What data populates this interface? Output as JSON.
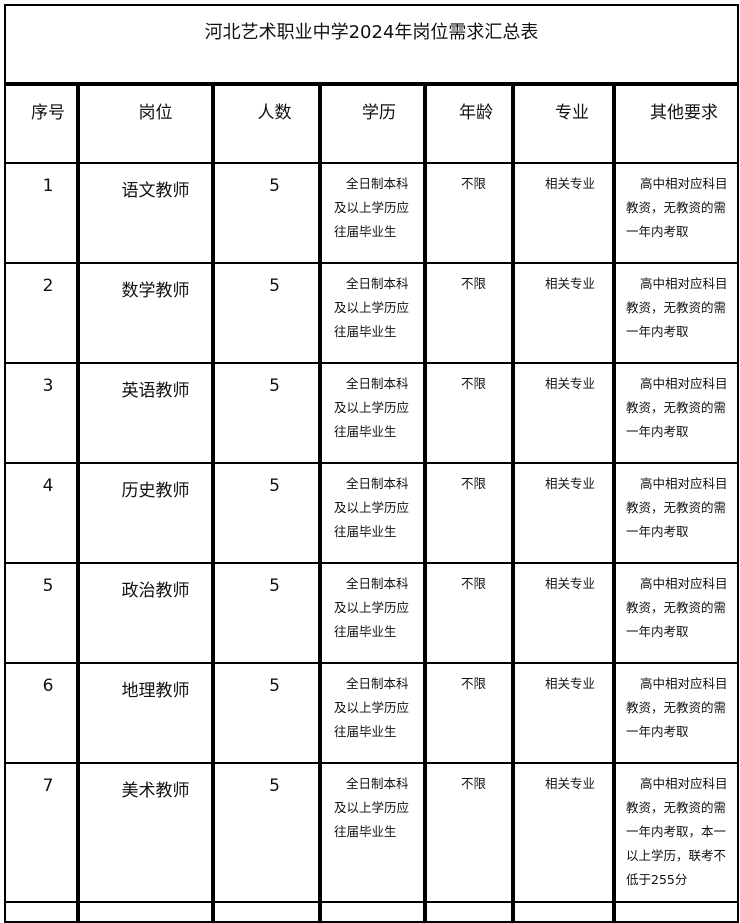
{
  "title": "河北艺术职业中学2024年岗位需求汇总表",
  "headers": [
    "序号",
    "岗位",
    "人数",
    "学历",
    "年龄",
    "专业",
    "其他要求"
  ],
  "rows": [
    {
      "seq": "1",
      "position": "语文教师",
      "count": "5",
      "education": "全日制本科及以上学历应往届毕业生",
      "age": "不限",
      "major": "相关专业",
      "other": "高中相对应科目教资，无教资的需一年内考取"
    },
    {
      "seq": "2",
      "position": "数学教师",
      "count": "5",
      "education": "全日制本科及以上学历应往届毕业生",
      "age": "不限",
      "major": "相关专业",
      "other": "高中相对应科目教资，无教资的需一年内考取"
    },
    {
      "seq": "3",
      "position": "英语教师",
      "count": "5",
      "education": "全日制本科及以上学历应往届毕业生",
      "age": "不限",
      "major": "相关专业",
      "other": "高中相对应科目教资，无教资的需一年内考取"
    },
    {
      "seq": "4",
      "position": "历史教师",
      "count": "5",
      "education": "全日制本科及以上学历应往届毕业生",
      "age": "不限",
      "major": "相关专业",
      "other": "高中相对应科目教资，无教资的需一年内考取"
    },
    {
      "seq": "5",
      "position": "政治教师",
      "count": "5",
      "education": "全日制本科及以上学历应往届毕业生",
      "age": "不限",
      "major": "相关专业",
      "other": "高中相对应科目教资，无教资的需一年内考取"
    },
    {
      "seq": "6",
      "position": "地理教师",
      "count": "5",
      "education": "全日制本科及以上学历应往届毕业生",
      "age": "不限",
      "major": "相关专业",
      "other": "高中相对应科目教资，无教资的需一年内考取"
    },
    {
      "seq": "7",
      "position": "美术教师",
      "count": "5",
      "education": "全日制本科及以上学历应往届毕业生",
      "age": "不限",
      "major": "相关专业",
      "other": "高中相对应科目教资，无教资的需一年内考取，本一以上学历，联考不低于255分"
    }
  ]
}
